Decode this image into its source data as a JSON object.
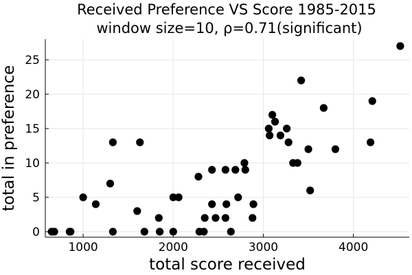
{
  "chart_data": {
    "type": "scatter",
    "title": "Received Preference VS Score 1985-2015",
    "subtitle": "window size=10, ρ=0.71(significant)",
    "xlabel": "total score received",
    "ylabel": "total in preference",
    "xlim": [
      580,
      4620
    ],
    "ylim": [
      -0.8,
      28
    ],
    "xticks": [
      1000,
      2000,
      3000,
      4000
    ],
    "yticks": [
      0,
      5,
      10,
      15,
      20,
      25
    ],
    "grid": true,
    "legend": "none",
    "marker_color": "#000000",
    "points": [
      {
        "x": 650,
        "y": 0
      },
      {
        "x": 680,
        "y": 0
      },
      {
        "x": 850,
        "y": 0
      },
      {
        "x": 860,
        "y": 0
      },
      {
        "x": 1000,
        "y": 5
      },
      {
        "x": 1140,
        "y": 4
      },
      {
        "x": 1300,
        "y": 7
      },
      {
        "x": 1330,
        "y": 13
      },
      {
        "x": 1330,
        "y": 0
      },
      {
        "x": 1600,
        "y": 3
      },
      {
        "x": 1630,
        "y": 13
      },
      {
        "x": 1680,
        "y": 0
      },
      {
        "x": 1840,
        "y": 2
      },
      {
        "x": 1850,
        "y": 0
      },
      {
        "x": 2000,
        "y": 0
      },
      {
        "x": 2000,
        "y": 5
      },
      {
        "x": 2060,
        "y": 5
      },
      {
        "x": 2280,
        "y": 8
      },
      {
        "x": 2290,
        "y": 0
      },
      {
        "x": 2340,
        "y": 0
      },
      {
        "x": 2350,
        "y": 2
      },
      {
        "x": 2430,
        "y": 4
      },
      {
        "x": 2430,
        "y": 9
      },
      {
        "x": 2470,
        "y": 2
      },
      {
        "x": 2580,
        "y": 9
      },
      {
        "x": 2590,
        "y": 4
      },
      {
        "x": 2580,
        "y": 2
      },
      {
        "x": 2640,
        "y": 0
      },
      {
        "x": 2690,
        "y": 9
      },
      {
        "x": 2720,
        "y": 5
      },
      {
        "x": 2790,
        "y": 10
      },
      {
        "x": 2800,
        "y": 9
      },
      {
        "x": 2880,
        "y": 2
      },
      {
        "x": 2890,
        "y": 4
      },
      {
        "x": 3060,
        "y": 15
      },
      {
        "x": 3070,
        "y": 14
      },
      {
        "x": 3100,
        "y": 17
      },
      {
        "x": 3130,
        "y": 16
      },
      {
        "x": 3190,
        "y": 14
      },
      {
        "x": 3260,
        "y": 15
      },
      {
        "x": 3280,
        "y": 13
      },
      {
        "x": 3330,
        "y": 10
      },
      {
        "x": 3380,
        "y": 10
      },
      {
        "x": 3420,
        "y": 22
      },
      {
        "x": 3500,
        "y": 12
      },
      {
        "x": 3520,
        "y": 6
      },
      {
        "x": 3670,
        "y": 18
      },
      {
        "x": 3800,
        "y": 12
      },
      {
        "x": 4190,
        "y": 13
      },
      {
        "x": 4210,
        "y": 19
      },
      {
        "x": 4520,
        "y": 27
      }
    ]
  }
}
